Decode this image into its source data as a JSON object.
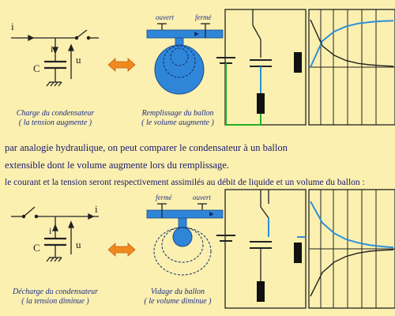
{
  "top": {
    "circuit": {
      "current": "i",
      "cap": "C",
      "branch_current": "i",
      "voltage": "u"
    },
    "caption_left": [
      "Charge du condensateur",
      "( la tension augmente )"
    ],
    "valve_left": "ouvert",
    "valve_right": "fermé",
    "caption_balloon": [
      "Remplissage du ballon",
      "( le volume augmente )"
    ]
  },
  "paragraph": [
    "par analogie hydraulique, on peut comparer le condensateur à un ballon",
    "extensible dont le volume augmente lors du remplissage.",
    "le courant et la tension seront respectivement assimilés au débit de liquide et un volume du ballon :"
  ],
  "bottom": {
    "circuit": {
      "current": "i",
      "cap": "C",
      "branch_current": "i",
      "voltage": "u"
    },
    "caption_left": [
      "Décharge du condensateur",
      "( la tension diminue )"
    ],
    "valve_left": "fermé",
    "valve_right": "ouvert",
    "caption_balloon": [
      "Vidage du ballon",
      "( le volume diminue )"
    ]
  },
  "colors": {
    "background": "#fbf0b0",
    "pipe": "#2f86d8",
    "arrow": "#f08a1c",
    "wire_green": "#20b020",
    "wire_blue": "#2e8fd8",
    "text": "#1f2f86"
  },
  "chart_data": [
    {
      "type": "line",
      "title": "",
      "series": [
        {
          "values": [
            0.0,
            0.55,
            0.75,
            0.86,
            0.92,
            0.95,
            0.97,
            0.98
          ]
        },
        {
          "values": [
            1.0,
            0.45,
            0.25,
            0.14,
            0.08,
            0.05,
            0.03,
            0.02
          ]
        }
      ],
      "grid": true
    },
    {
      "type": "line",
      "title": "",
      "series": [
        {
          "values": [
            1.0,
            0.55,
            0.33,
            0.2,
            0.13,
            0.08,
            0.05,
            0.03
          ]
        },
        {
          "values": [
            -1.0,
            -0.5,
            -0.28,
            -0.16,
            -0.09,
            -0.05,
            -0.03,
            -0.02
          ]
        }
      ],
      "grid": true
    }
  ]
}
